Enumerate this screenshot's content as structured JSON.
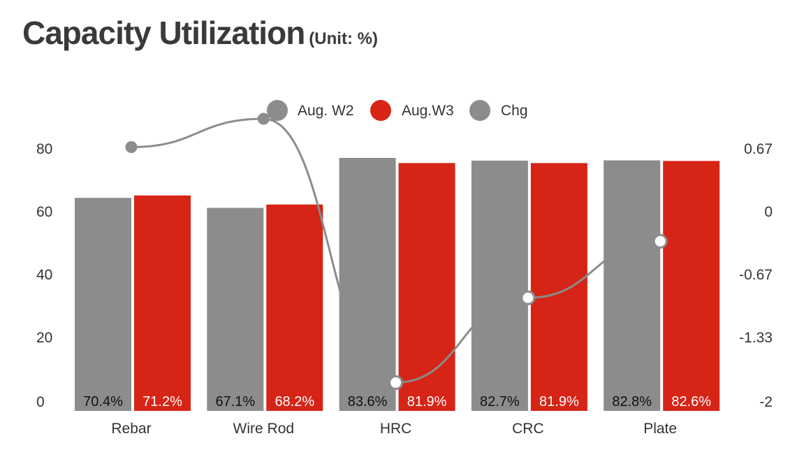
{
  "title": "Capacity Utilization",
  "subtitle": "(Unit: %)",
  "colors": {
    "w2": "#8c8c8c",
    "w3": "#d62416",
    "chg": "#8c8c8c",
    "text": "#333333"
  },
  "chart_data": {
    "type": "bar",
    "title": "Capacity Utilization",
    "subtitle": "(Unit: %)",
    "categories": [
      "Rebar",
      "Wire Rod",
      "HRC",
      "CRC",
      "Plate"
    ],
    "series": [
      {
        "name": "Aug. W2",
        "type": "bar",
        "axis": "left",
        "values": [
          70.4,
          67.1,
          83.6,
          82.7,
          82.8
        ],
        "labels": [
          "70.4%",
          "67.1%",
          "83.6%",
          "82.7%",
          "82.8%"
        ]
      },
      {
        "name": "Aug.W3",
        "type": "bar",
        "axis": "left",
        "values": [
          71.2,
          68.2,
          81.9,
          81.9,
          82.6
        ],
        "labels": [
          "71.2%",
          "68.2%",
          "81.9%",
          "81.9%",
          "82.6%"
        ]
      },
      {
        "name": "Chg",
        "type": "line",
        "axis": "right",
        "values": [
          0.8,
          1.1,
          -1.7,
          -0.8,
          -0.2
        ]
      }
    ],
    "y_left": {
      "ticks": [
        "0",
        "20",
        "40",
        "60",
        "80"
      ],
      "range": [
        0,
        80
      ]
    },
    "y_right": {
      "ticks": [
        "-2",
        "-1.33",
        "-0.67",
        "0",
        "0.67"
      ],
      "range": [
        -2,
        0.67
      ]
    },
    "legend": "top-center",
    "grid": false
  }
}
